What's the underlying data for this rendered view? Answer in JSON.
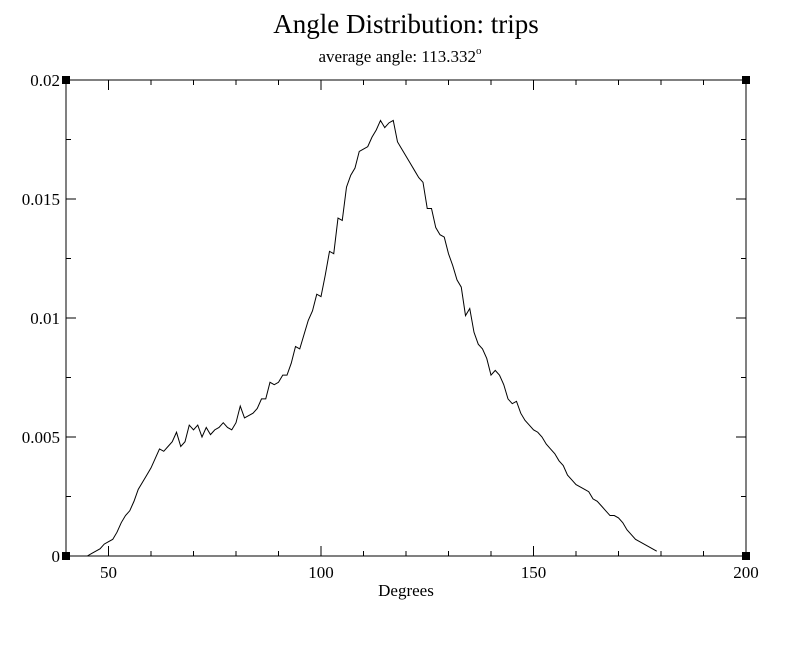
{
  "chart_data": {
    "type": "line",
    "title": "Angle Distribution: trips",
    "subtitle": "average angle: 113.332",
    "subtitle_superscript": "o",
    "xlabel": "Degrees",
    "ylabel": "",
    "xlim": [
      40,
      200
    ],
    "ylim": [
      0,
      0.02
    ],
    "x_ticks": [
      50,
      100,
      150,
      200
    ],
    "x_tick_labels": [
      "50",
      "100",
      "150",
      "200"
    ],
    "y_ticks": [
      0,
      0.005,
      0.01,
      0.015,
      0.02
    ],
    "y_tick_labels": [
      "0",
      "0.005",
      "0.01",
      "0.015",
      "0.02"
    ],
    "grid": false,
    "line_color": "#000000",
    "series": [
      {
        "x": [
          45,
          46,
          47,
          48,
          49,
          50,
          51,
          52,
          53,
          54,
          55,
          56,
          57,
          58,
          59,
          60,
          61,
          62,
          63,
          64,
          65,
          66,
          67,
          68,
          69,
          70,
          71,
          72,
          73,
          74,
          75,
          76,
          77,
          78,
          79,
          80,
          81,
          82,
          83,
          84,
          85,
          86,
          87,
          88,
          89,
          90,
          91,
          92,
          93,
          94,
          95,
          96,
          97,
          98,
          99,
          100,
          101,
          102,
          103,
          104,
          105,
          106,
          107,
          108,
          109,
          110,
          111,
          112,
          113,
          114,
          115,
          116,
          117,
          118,
          119,
          120,
          121,
          122,
          123,
          124,
          125,
          126,
          127,
          128,
          129,
          130,
          131,
          132,
          133,
          134,
          135,
          136,
          137,
          138,
          139,
          140,
          141,
          142,
          143,
          144,
          145,
          146,
          147,
          148,
          149,
          150,
          151,
          152,
          153,
          154,
          155,
          156,
          157,
          158,
          159,
          160,
          161,
          162,
          163,
          164,
          165,
          166,
          167,
          168,
          169,
          170,
          171,
          172,
          173,
          174,
          175,
          176,
          177,
          178,
          179
        ],
        "y": [
          0.0,
          0.0001,
          0.0002,
          0.0003,
          0.0005,
          0.0006,
          0.0007,
          0.001,
          0.0014,
          0.0017,
          0.0019,
          0.0023,
          0.0028,
          0.0031,
          0.0034,
          0.0037,
          0.0041,
          0.0045,
          0.0044,
          0.0046,
          0.0048,
          0.0052,
          0.0046,
          0.0048,
          0.0055,
          0.0053,
          0.0055,
          0.005,
          0.0054,
          0.0051,
          0.0053,
          0.0054,
          0.0056,
          0.0054,
          0.0053,
          0.0056,
          0.0063,
          0.0058,
          0.0059,
          0.006,
          0.0062,
          0.0066,
          0.0066,
          0.0073,
          0.0072,
          0.0073,
          0.0076,
          0.0076,
          0.0081,
          0.0088,
          0.0087,
          0.0093,
          0.0099,
          0.0103,
          0.011,
          0.0109,
          0.0118,
          0.0128,
          0.0127,
          0.0142,
          0.0141,
          0.0155,
          0.016,
          0.0163,
          0.017,
          0.0171,
          0.0172,
          0.0176,
          0.0179,
          0.0183,
          0.018,
          0.0182,
          0.0183,
          0.0174,
          0.0171,
          0.0168,
          0.0165,
          0.0162,
          0.0159,
          0.0157,
          0.0146,
          0.0146,
          0.0138,
          0.0135,
          0.0134,
          0.0127,
          0.0122,
          0.0116,
          0.0113,
          0.0101,
          0.0104,
          0.0094,
          0.0089,
          0.0087,
          0.0083,
          0.0076,
          0.0078,
          0.0076,
          0.0072,
          0.0066,
          0.0064,
          0.0065,
          0.006,
          0.0057,
          0.0055,
          0.0053,
          0.0052,
          0.005,
          0.0047,
          0.0045,
          0.0043,
          0.004,
          0.0038,
          0.0034,
          0.0032,
          0.003,
          0.0029,
          0.0028,
          0.0027,
          0.0024,
          0.0023,
          0.0021,
          0.0019,
          0.0017,
          0.0017,
          0.0016,
          0.0014,
          0.0011,
          0.0009,
          0.0007,
          0.0006,
          0.0005,
          0.0004,
          0.0003,
          0.0002
        ]
      }
    ]
  }
}
